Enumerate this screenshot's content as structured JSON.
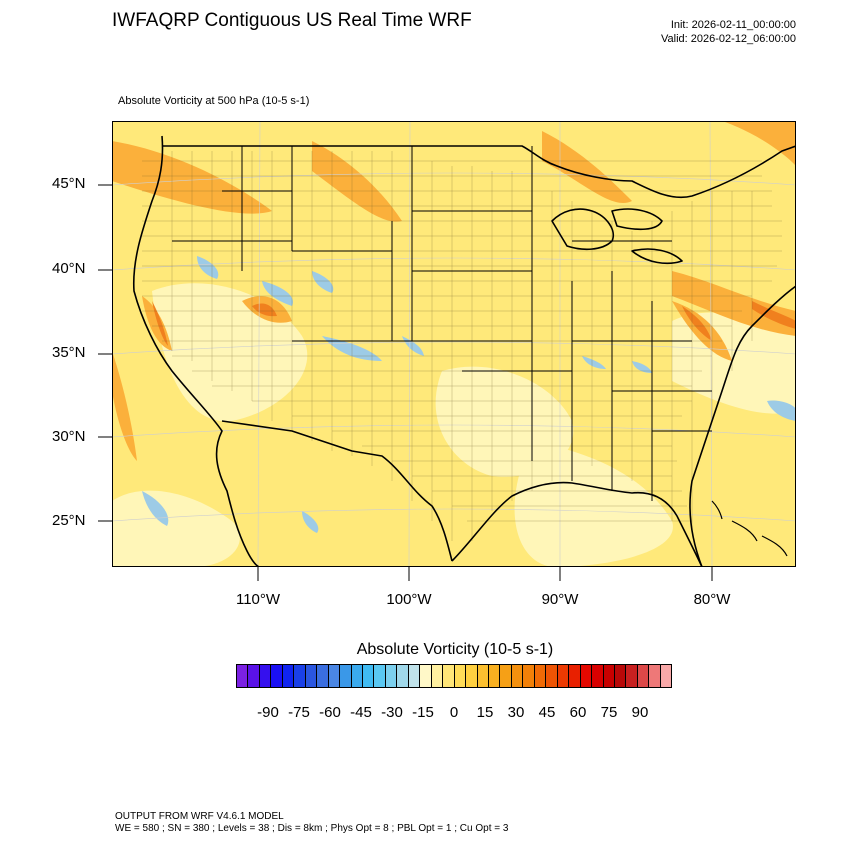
{
  "header": {
    "title": "IWFAQRP Contiguous US Real Time WRF",
    "init": "Init: 2026-02-11_00:00:00",
    "valid": "Valid: 2026-02-12_06:00:00"
  },
  "field_title": "Absolute Vorticity at 500 hPa   (10-5 s-1)",
  "map": {
    "lat_labels": [
      "45°N",
      "40°N",
      "35°N",
      "30°N",
      "25°N"
    ],
    "lon_labels": [
      "110°W",
      "100°W",
      "90°W",
      "80°W"
    ],
    "colors": {
      "background": "#ffe97a",
      "light": "#fff6b8",
      "orange": "#fbb03b",
      "dark_orange": "#f0801e",
      "blue": "#9dcbe6",
      "outline": "#000000"
    }
  },
  "colorbar": {
    "title": "Absolute Vorticity  (10-5 s-1)",
    "tick_labels": [
      "-90",
      "-75",
      "-60",
      "-45",
      "-30",
      "-15",
      "0",
      "15",
      "30",
      "45",
      "60",
      "75",
      "90"
    ],
    "colors": [
      "#7b21e3",
      "#5a12e8",
      "#3510ee",
      "#1a10f4",
      "#1024f0",
      "#1a40e8",
      "#2a56e0",
      "#3a6ee0",
      "#4a86e4",
      "#3a98e8",
      "#3aaaee",
      "#40bbf2",
      "#5ac8f2",
      "#7cd0ee",
      "#a0d8ea",
      "#c0e2ea",
      "#fff8c8",
      "#fff0a0",
      "#ffe678",
      "#ffdc58",
      "#ffd040",
      "#fcc030",
      "#f8b020",
      "#f6a016",
      "#f4900e",
      "#f28008",
      "#f06a06",
      "#ee5404",
      "#ec3a02",
      "#e82000",
      "#e40800",
      "#d80000",
      "#c80000",
      "#b80808",
      "#c82020",
      "#dc4848",
      "#ee7878",
      "#f8a8a8"
    ]
  },
  "footer": {
    "line1": "OUTPUT FROM WRF V4.6.1 MODEL",
    "line2": "WE = 580 ; SN = 380 ; Levels = 38 ; Dis = 8km ; Phys Opt = 8 ; PBL Opt = 1 ; Cu Opt = 3"
  }
}
